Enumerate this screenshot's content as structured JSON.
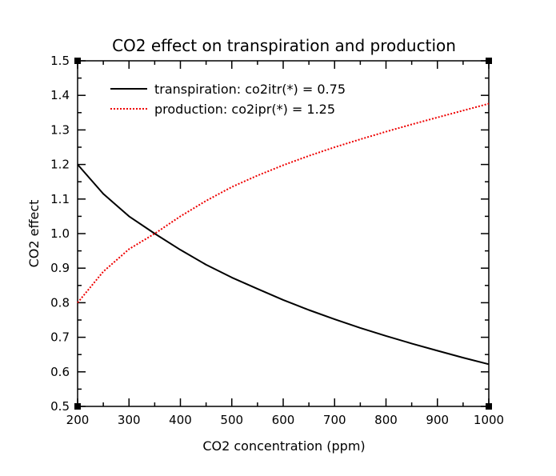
{
  "chart_data": {
    "type": "line",
    "title": "CO2 effect on transpiration and production",
    "xlabel": "CO2 concentration (ppm)",
    "ylabel": "CO2 effect",
    "xlim": [
      200,
      1000
    ],
    "ylim": [
      0.5,
      1.5
    ],
    "x_ticks": [
      "200",
      "300",
      "400",
      "500",
      "600",
      "700",
      "800",
      "900",
      "1000"
    ],
    "y_ticks": [
      "0.5",
      "0.6",
      "0.7",
      "0.8",
      "0.9",
      "1.0",
      "1.1",
      "1.2",
      "1.3",
      "1.4",
      "1.5"
    ],
    "grid": false,
    "legend_position": "top-left",
    "x": [
      200,
      250,
      300,
      350,
      400,
      450,
      500,
      550,
      600,
      650,
      700,
      750,
      800,
      850,
      900,
      950,
      1000
    ],
    "series": [
      {
        "name": "transpiration: co2itr(*) = 0.75",
        "color": "#000000",
        "dash": "solid",
        "values": [
          1.2,
          1.115,
          1.05,
          1.0,
          0.953,
          0.91,
          0.873,
          0.84,
          0.808,
          0.779,
          0.752,
          0.727,
          0.704,
          0.682,
          0.661,
          0.641,
          0.622
        ]
      },
      {
        "name": "production: co2ipr(*) = 1.25",
        "color": "#ee0000",
        "dash": "dotted",
        "values": [
          0.8,
          0.89,
          0.955,
          1.0,
          1.05,
          1.095,
          1.135,
          1.168,
          1.198,
          1.225,
          1.25,
          1.273,
          1.295,
          1.316,
          1.336,
          1.356,
          1.376
        ]
      }
    ]
  }
}
